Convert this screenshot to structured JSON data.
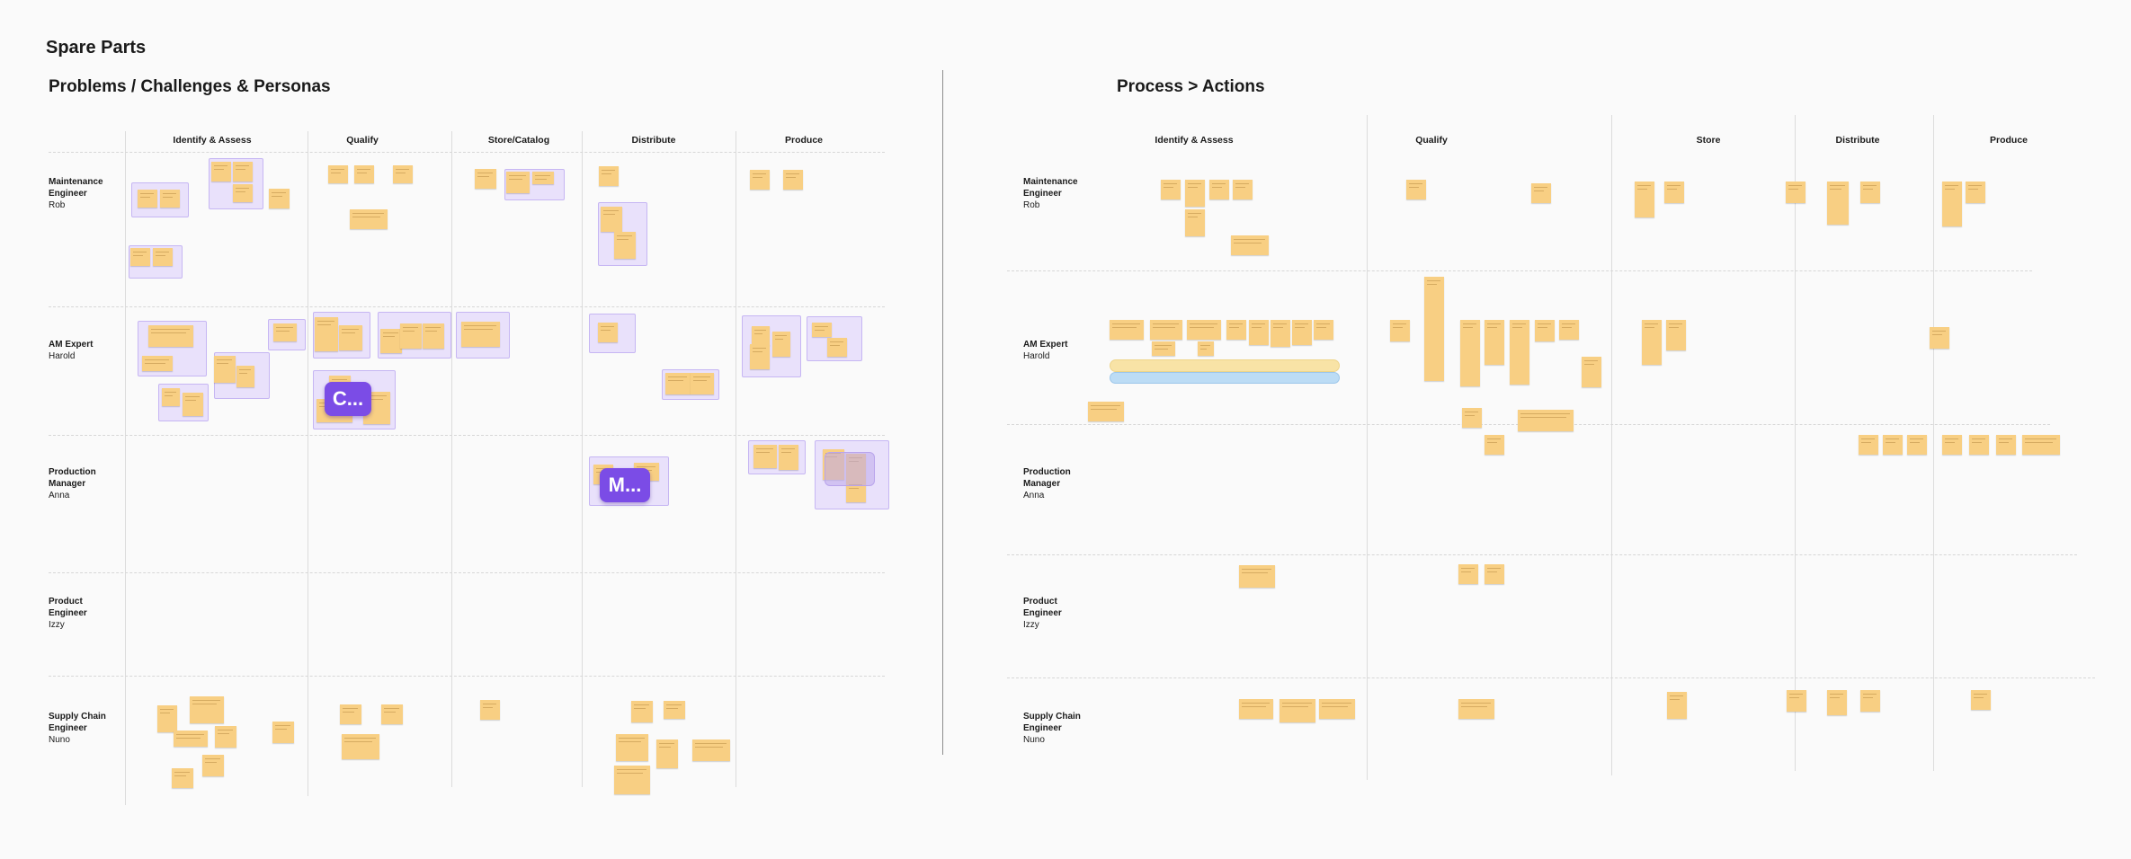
{
  "board": {
    "title": "Spare Parts"
  },
  "left": {
    "title": "Problems / Challenges &  Personas",
    "columns": [
      "Identify & Assess",
      "Qualify",
      "Store/Catalog",
      "Distribute",
      "Produce"
    ]
  },
  "right": {
    "title": "Process > Actions",
    "columns": [
      "Identify & Assess",
      "Qualify",
      "Store",
      "Distribute",
      "Produce"
    ]
  },
  "personas": [
    {
      "role_lines": [
        "Maintenance",
        "Engineer"
      ],
      "name": "Rob"
    },
    {
      "role_lines": [
        "AM Expert"
      ],
      "name": "Harold"
    },
    {
      "role_lines": [
        "Production",
        "Manager"
      ],
      "name": "Anna"
    },
    {
      "role_lines": [
        "Product",
        "Engineer"
      ],
      "name": "Izzy"
    },
    {
      "role_lines": [
        "Supply Chain",
        "Engineer"
      ],
      "name": "Nuno"
    }
  ],
  "avatars": [
    {
      "label": "C...",
      "color": "#7b4ce6"
    },
    {
      "label": "M...",
      "color": "#7b4ce6"
    }
  ],
  "colors": {
    "sticky": "#f8cf83",
    "group": "#e9e1fb",
    "group_border": "#c6b6f3",
    "bar_yellow": "#f8e3a6",
    "bar_blue": "#bcdcf5"
  }
}
